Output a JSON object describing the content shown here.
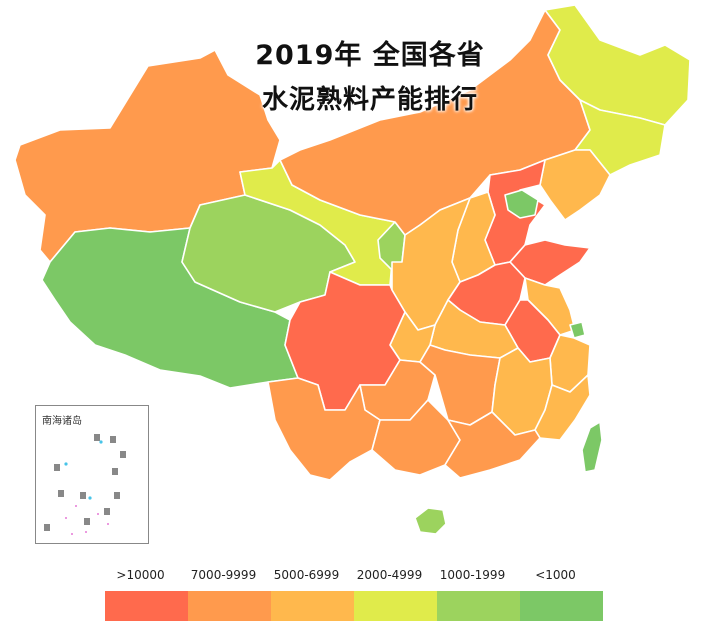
{
  "title": {
    "line1": "2019年 全国各省",
    "line2": "水泥熟料产能排行"
  },
  "inset": {
    "label": "南海诸岛"
  },
  "legend": {
    "classes": [
      {
        "label": ">10000",
        "color": "#ff6a4d"
      },
      {
        "label": "7000-9999",
        "color": "#ff9a4d"
      },
      {
        "label": "5000-6999",
        "color": "#ffb84d"
      },
      {
        "label": "2000-4999",
        "color": "#e0eb4b"
      },
      {
        "label": "1000-1999",
        "color": "#9cd35e"
      },
      {
        "label": "<1000",
        "color": "#7cc866"
      }
    ]
  },
  "regions": [
    {
      "name": "新疆",
      "class": "7000-9999"
    },
    {
      "name": "西藏",
      "class": "<1000"
    },
    {
      "name": "青海",
      "class": "1000-1999"
    },
    {
      "name": "甘肃",
      "class": "2000-4999"
    },
    {
      "name": "宁夏",
      "class": "1000-1999"
    },
    {
      "name": "内蒙古",
      "class": "7000-9999"
    },
    {
      "name": "黑龙江",
      "class": "2000-4999"
    },
    {
      "name": "吉林",
      "class": "2000-4999"
    },
    {
      "name": "辽宁",
      "class": "5000-6999"
    },
    {
      "name": "北京",
      "class": "<1000"
    },
    {
      "name": "天津",
      "class": "<1000"
    },
    {
      "name": "河北",
      "class": ">10000"
    },
    {
      "name": "山西",
      "class": "5000-6999"
    },
    {
      "name": "陕西",
      "class": "5000-6999"
    },
    {
      "name": "山东",
      "class": ">10000"
    },
    {
      "name": "河南",
      "class": ">10000"
    },
    {
      "name": "安徽",
      "class": ">10000"
    },
    {
      "name": "江苏",
      "class": "5000-6999"
    },
    {
      "name": "上海",
      "class": "<1000"
    },
    {
      "name": "浙江",
      "class": "5000-6999"
    },
    {
      "name": "湖北",
      "class": "5000-6999"
    },
    {
      "name": "重庆",
      "class": "5000-6999"
    },
    {
      "name": "四川",
      "class": ">10000"
    },
    {
      "name": "湖南",
      "class": "7000-9999"
    },
    {
      "name": "江西",
      "class": "5000-6999"
    },
    {
      "name": "福建",
      "class": "5000-6999"
    },
    {
      "name": "贵州",
      "class": "7000-9999"
    },
    {
      "name": "云南",
      "class": "7000-9999"
    },
    {
      "name": "广西",
      "class": "7000-9999"
    },
    {
      "name": "广东",
      "class": "7000-9999"
    },
    {
      "name": "海南",
      "class": "1000-1999"
    },
    {
      "name": "台湾",
      "class": "<1000"
    }
  ]
}
